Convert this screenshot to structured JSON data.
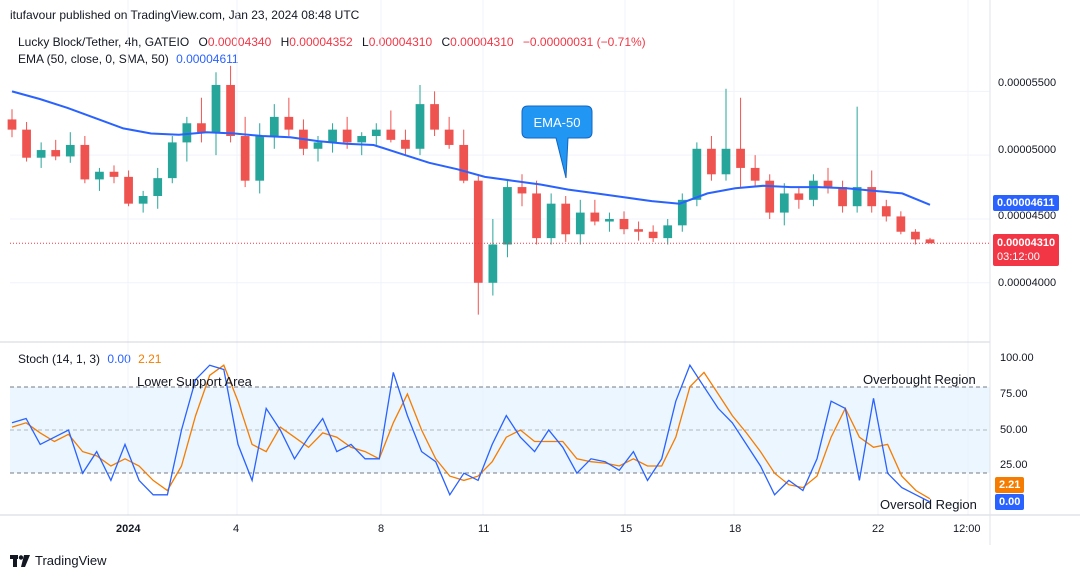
{
  "publisher": "itufavour published on TradingView.com, Jan 23, 2024 08:48 UTC",
  "legend": {
    "symbol": "Lucky Block/Tether, 4h, GATEIO",
    "o_label": "O",
    "o_value": "0.00004340",
    "h_label": "H",
    "h_value": "0.00004352",
    "l_label": "L",
    "l_value": "0.00004310",
    "c_label": "C",
    "c_value": "0.00004310",
    "change": "−0.00000031 (−0.71%)",
    "ema_label": "EMA (50, close, 0, SMA, 50)",
    "ema_value": "0.00004611",
    "stoch_label": "Stoch (14, 1, 3)",
    "stoch_k": "0.00",
    "stoch_d": "2.21"
  },
  "annotations": {
    "ema_callout": "EMA-50",
    "lower_support": "Lower Support Area",
    "overbought": "Overbought Region",
    "oversold": "Oversold Region"
  },
  "price_axis": {
    "ticks": [
      "0.00005500",
      "0.00005000",
      "0.00004500",
      "0.00004000"
    ],
    "ema_tag": "0.00004611",
    "last_tag": "0.00004310",
    "countdown": "03:12:00"
  },
  "stoch_axis": {
    "ticks": [
      "100.00",
      "75.00",
      "50.00",
      "25.00"
    ],
    "d_tag": "2.21",
    "k_tag": "0.00"
  },
  "time_axis": [
    "2024",
    "4",
    "8",
    "11",
    "15",
    "18",
    "22",
    "12:00"
  ],
  "footer": {
    "brand": "TradingView"
  },
  "colors": {
    "up": "#26a69a",
    "down": "#ef5350",
    "ema": "#2962ff",
    "stoch_k": "#2962ff",
    "stoch_d": "#f57c00",
    "band_fill": "#e3f2fd",
    "last_price": "#f23645"
  },
  "chart_data": [
    {
      "type": "candlestick",
      "title": "Lucky Block/Tether, 4h, GATEIO",
      "ylim": [
        3.63e-05,
        5.73e-05
      ],
      "candles": [
        {
          "o": 5.28e-05,
          "h": 5.36e-05,
          "l": 5.14e-05,
          "c": 5.2e-05
        },
        {
          "o": 5.2e-05,
          "h": 5.26e-05,
          "l": 4.95e-05,
          "c": 4.98e-05
        },
        {
          "o": 4.98e-05,
          "h": 5.1e-05,
          "l": 4.9e-05,
          "c": 5.04e-05
        },
        {
          "o": 5.04e-05,
          "h": 5.12e-05,
          "l": 4.96e-05,
          "c": 4.99e-05
        },
        {
          "o": 4.99e-05,
          "h": 5.18e-05,
          "l": 4.94e-05,
          "c": 5.08e-05
        },
        {
          "o": 5.08e-05,
          "h": 5.15e-05,
          "l": 4.78e-05,
          "c": 4.81e-05
        },
        {
          "o": 4.81e-05,
          "h": 4.9e-05,
          "l": 4.72e-05,
          "c": 4.87e-05
        },
        {
          "o": 4.87e-05,
          "h": 4.92e-05,
          "l": 4.78e-05,
          "c": 4.83e-05
        },
        {
          "o": 4.83e-05,
          "h": 4.88e-05,
          "l": 4.6e-05,
          "c": 4.62e-05
        },
        {
          "o": 4.62e-05,
          "h": 4.72e-05,
          "l": 4.55e-05,
          "c": 4.68e-05
        },
        {
          "o": 4.68e-05,
          "h": 4.9e-05,
          "l": 4.58e-05,
          "c": 4.82e-05
        },
        {
          "o": 4.82e-05,
          "h": 5.15e-05,
          "l": 4.78e-05,
          "c": 5.1e-05
        },
        {
          "o": 5.1e-05,
          "h": 5.3e-05,
          "l": 4.95e-05,
          "c": 5.25e-05
        },
        {
          "o": 5.25e-05,
          "h": 5.45e-05,
          "l": 5.1e-05,
          "c": 5.18e-05
        },
        {
          "o": 5.18e-05,
          "h": 5.65e-05,
          "l": 5e-05,
          "c": 5.55e-05
        },
        {
          "o": 5.55e-05,
          "h": 5.7e-05,
          "l": 5.1e-05,
          "c": 5.15e-05
        },
        {
          "o": 5.15e-05,
          "h": 5.3e-05,
          "l": 4.75e-05,
          "c": 4.8e-05
        },
        {
          "o": 4.8e-05,
          "h": 5.25e-05,
          "l": 4.7e-05,
          "c": 5.15e-05
        },
        {
          "o": 5.15e-05,
          "h": 5.4e-05,
          "l": 5.05e-05,
          "c": 5.3e-05
        },
        {
          "o": 5.3e-05,
          "h": 5.45e-05,
          "l": 5.15e-05,
          "c": 5.2e-05
        },
        {
          "o": 5.2e-05,
          "h": 5.28e-05,
          "l": 5e-05,
          "c": 5.05e-05
        },
        {
          "o": 5.05e-05,
          "h": 5.15e-05,
          "l": 4.95e-05,
          "c": 5.1e-05
        },
        {
          "o": 5.1e-05,
          "h": 5.25e-05,
          "l": 5.02e-05,
          "c": 5.2e-05
        },
        {
          "o": 5.2e-05,
          "h": 5.3e-05,
          "l": 5.05e-05,
          "c": 5.1e-05
        },
        {
          "o": 5.1e-05,
          "h": 5.18e-05,
          "l": 5e-05,
          "c": 5.15e-05
        },
        {
          "o": 5.15e-05,
          "h": 5.25e-05,
          "l": 5.08e-05,
          "c": 5.2e-05
        },
        {
          "o": 5.2e-05,
          "h": 5.35e-05,
          "l": 5.1e-05,
          "c": 5.12e-05
        },
        {
          "o": 5.12e-05,
          "h": 5.2e-05,
          "l": 5e-05,
          "c": 5.05e-05
        },
        {
          "o": 5.05e-05,
          "h": 5.55e-05,
          "l": 5e-05,
          "c": 5.4e-05
        },
        {
          "o": 5.4e-05,
          "h": 5.5e-05,
          "l": 5.15e-05,
          "c": 5.2e-05
        },
        {
          "o": 5.2e-05,
          "h": 5.3e-05,
          "l": 5.05e-05,
          "c": 5.08e-05
        },
        {
          "o": 5.08e-05,
          "h": 5.2e-05,
          "l": 4.78e-05,
          "c": 4.8e-05
        },
        {
          "o": 4.8e-05,
          "h": 4.85e-05,
          "l": 3.75e-05,
          "c": 4e-05
        },
        {
          "o": 4e-05,
          "h": 4.5e-05,
          "l": 3.9e-05,
          "c": 4.3e-05
        },
        {
          "o": 4.3e-05,
          "h": 4.8e-05,
          "l": 4.2e-05,
          "c": 4.75e-05
        },
        {
          "o": 4.75e-05,
          "h": 4.85e-05,
          "l": 4.6e-05,
          "c": 4.7e-05
        },
        {
          "o": 4.7e-05,
          "h": 4.8e-05,
          "l": 4.3e-05,
          "c": 4.35e-05
        },
        {
          "o": 4.35e-05,
          "h": 4.7e-05,
          "l": 4.3e-05,
          "c": 4.62e-05
        },
        {
          "o": 4.62e-05,
          "h": 4.68e-05,
          "l": 4.32e-05,
          "c": 4.38e-05
        },
        {
          "o": 4.38e-05,
          "h": 4.65e-05,
          "l": 4.3e-05,
          "c": 4.55e-05
        },
        {
          "o": 4.55e-05,
          "h": 4.65e-05,
          "l": 4.45e-05,
          "c": 4.48e-05
        },
        {
          "o": 4.48e-05,
          "h": 4.55e-05,
          "l": 4.4e-05,
          "c": 4.5e-05
        },
        {
          "o": 4.5e-05,
          "h": 4.56e-05,
          "l": 4.38e-05,
          "c": 4.42e-05
        },
        {
          "o": 4.42e-05,
          "h": 4.48e-05,
          "l": 4.33e-05,
          "c": 4.4e-05
        },
        {
          "o": 4.4e-05,
          "h": 4.45e-05,
          "l": 4.32e-05,
          "c": 4.35e-05
        },
        {
          "o": 4.35e-05,
          "h": 4.5e-05,
          "l": 4.3e-05,
          "c": 4.45e-05
        },
        {
          "o": 4.45e-05,
          "h": 4.7e-05,
          "l": 4.4e-05,
          "c": 4.65e-05
        },
        {
          "o": 4.65e-05,
          "h": 5.1e-05,
          "l": 4.6e-05,
          "c": 5.05e-05
        },
        {
          "o": 5.05e-05,
          "h": 5.15e-05,
          "l": 4.8e-05,
          "c": 4.85e-05
        },
        {
          "o": 4.85e-05,
          "h": 5.52e-05,
          "l": 4.8e-05,
          "c": 5.05e-05
        },
        {
          "o": 5.05e-05,
          "h": 5.45e-05,
          "l": 4.75e-05,
          "c": 4.9e-05
        },
        {
          "o": 4.9e-05,
          "h": 5e-05,
          "l": 4.75e-05,
          "c": 4.8e-05
        },
        {
          "o": 4.8e-05,
          "h": 4.85e-05,
          "l": 4.5e-05,
          "c": 4.55e-05
        },
        {
          "o": 4.55e-05,
          "h": 4.78e-05,
          "l": 4.45e-05,
          "c": 4.7e-05
        },
        {
          "o": 4.7e-05,
          "h": 4.75e-05,
          "l": 4.58e-05,
          "c": 4.65e-05
        },
        {
          "o": 4.65e-05,
          "h": 4.85e-05,
          "l": 4.6e-05,
          "c": 4.8e-05
        },
        {
          "o": 4.8e-05,
          "h": 4.9e-05,
          "l": 4.7e-05,
          "c": 4.75e-05
        },
        {
          "o": 4.75e-05,
          "h": 4.8e-05,
          "l": 4.55e-05,
          "c": 4.6e-05
        },
        {
          "o": 4.6e-05,
          "h": 5.38e-05,
          "l": 4.55e-05,
          "c": 4.75e-05
        },
        {
          "o": 4.75e-05,
          "h": 4.88e-05,
          "l": 4.55e-05,
          "c": 4.6e-05
        },
        {
          "o": 4.6e-05,
          "h": 4.65e-05,
          "l": 4.48e-05,
          "c": 4.52e-05
        },
        {
          "o": 4.52e-05,
          "h": 4.56e-05,
          "l": 4.38e-05,
          "c": 4.4e-05
        },
        {
          "o": 4.4e-05,
          "h": 4.42e-05,
          "l": 4.3e-05,
          "c": 4.34e-05
        },
        {
          "o": 4.34e-05,
          "h": 4.352e-05,
          "l": 4.31e-05,
          "c": 4.31e-05
        }
      ],
      "ema50": [
        5.5e-05,
        5.44e-05,
        5.37e-05,
        5.29e-05,
        5.21e-05,
        5.17e-05,
        5.16e-05,
        5.18e-05,
        5.17e-05,
        5.15e-05,
        5.14e-05,
        5.11e-05,
        5.09e-05,
        5.08e-05,
        5.01e-05,
        4.94e-05,
        4.89e-05,
        4.83e-05,
        4.8e-05,
        4.77e-05,
        4.73e-05,
        4.7e-05,
        4.67e-05,
        4.64e-05,
        4.62e-05,
        4.7e-05,
        4.74e-05,
        4.76e-05,
        4.75e-05,
        4.75e-05,
        4.74e-05,
        4.72e-05,
        4.7e-05,
        4.611e-05
      ]
    },
    {
      "type": "line",
      "title": "Stoch (14, 1, 3)",
      "ylim": [
        0,
        100
      ],
      "bands": [
        20,
        50,
        80
      ],
      "series": [
        {
          "name": "%K",
          "values": [
            55,
            58,
            40,
            45,
            50,
            20,
            35,
            15,
            40,
            15,
            5,
            5,
            50,
            85,
            95,
            92,
            40,
            15,
            65,
            50,
            30,
            45,
            58,
            35,
            40,
            30,
            30,
            90,
            60,
            35,
            28,
            5,
            20,
            15,
            40,
            60,
            45,
            35,
            50,
            38,
            20,
            30,
            28,
            22,
            35,
            15,
            30,
            70,
            95,
            80,
            65,
            55,
            40,
            25,
            5,
            15,
            8,
            30,
            70,
            65,
            15,
            72,
            20,
            10,
            5,
            0
          ]
        },
        {
          "name": "%D",
          "values": [
            52,
            55,
            48,
            42,
            47,
            35,
            32,
            25,
            30,
            25,
            15,
            8,
            25,
            60,
            88,
            95,
            70,
            40,
            35,
            52,
            45,
            38,
            48,
            45,
            38,
            35,
            30,
            55,
            75,
            50,
            30,
            18,
            15,
            18,
            28,
            45,
            50,
            42,
            42,
            42,
            30,
            28,
            27,
            25,
            30,
            25,
            25,
            45,
            80,
            90,
            75,
            60,
            48,
            35,
            20,
            12,
            10,
            18,
            45,
            65,
            45,
            38,
            40,
            18,
            8,
            2.21
          ]
        }
      ]
    }
  ]
}
